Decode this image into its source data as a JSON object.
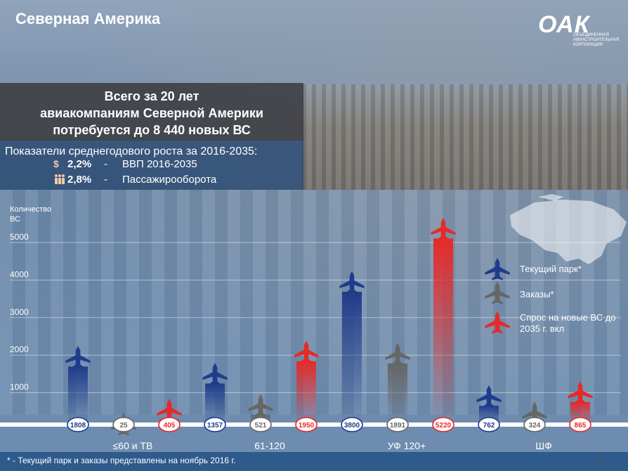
{
  "title": "Северная Америка",
  "logo": {
    "text": "ОАК",
    "subtitle_lines": [
      "ОБЪЕДИНЕННАЯ",
      "АВИАСТРОИТЕЛЬНАЯ",
      "КОРПОРАЦИЯ"
    ]
  },
  "banner": {
    "lines": [
      "Всего за 20 лет",
      "авиакомпаниям Северной Америки",
      "потребуется до 8 440 новых ВС"
    ]
  },
  "growth": {
    "title": "Показатели среднегодового роста за 2016-2035:",
    "rows": [
      {
        "icon": "dollar-icon",
        "value": "2,2%",
        "dash": "-",
        "label": "ВВП 2016-2035"
      },
      {
        "icon": "people-icon",
        "value": "2,8%",
        "dash": "-",
        "label": "Пассажирооборота"
      }
    ]
  },
  "legend": [
    {
      "label": "Текущий парк*",
      "color": "#1f3c8c"
    },
    {
      "label": "Заказы*",
      "color": "#666666"
    },
    {
      "label": "Спрос на новые ВС до 2035 г. вкл",
      "color": "#e52a2a"
    }
  ],
  "footer": {
    "note": "* - Текущий парк и заказы представлены на ноябрь 2016 г.",
    "page": "8"
  },
  "chart_data": {
    "type": "bar",
    "ylabel": "Количество ВС",
    "ylim": [
      0,
      5000
    ],
    "yticks": [
      1000,
      2000,
      3000,
      4000,
      5000
    ],
    "categories": [
      "≤60 и ТВ",
      "61-120",
      "УФ 120+",
      "ШФ"
    ],
    "series": [
      {
        "name": "Текущий парк*",
        "color": "#1f3c8c",
        "values": [
          1808,
          1357,
          3800,
          762
        ]
      },
      {
        "name": "Заказы*",
        "color": "#666666",
        "values": [
          25,
          521,
          1891,
          324
        ]
      },
      {
        "name": "Спрос на новые ВС до 2035 г. вкл",
        "color": "#e52a2a",
        "values": [
          405,
          1950,
          5220,
          865
        ]
      }
    ]
  }
}
